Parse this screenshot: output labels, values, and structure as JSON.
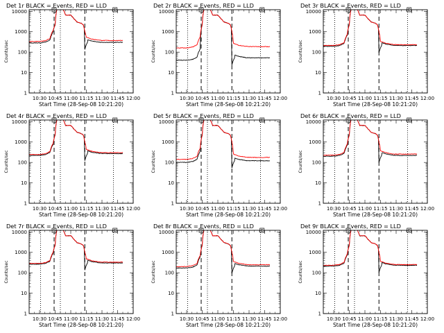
{
  "figure": {
    "xticks": [
      "10:30",
      "10:45",
      "11:00",
      "11:15",
      "11:30",
      "11:45",
      "12:00"
    ],
    "xtick_values": [
      30,
      45,
      60,
      75,
      90,
      105,
      120
    ],
    "xlim": [
      20,
      120
    ],
    "ylim": [
      1,
      12000
    ],
    "yticks": [
      "1",
      "10",
      "100",
      "1000",
      "10000"
    ],
    "ytick_values": [
      1,
      10,
      100,
      1000,
      10000
    ],
    "ylabel": "Counts/sec",
    "xlabel": "Start Time (28-Sep-08 10:21:20)",
    "colors": {
      "events": "#000000",
      "lld": "#ff0000"
    },
    "dotted_markers_min": [
      31,
      50,
      101
    ],
    "dashed_markers_min": [
      44,
      73.5
    ],
    "box_markers": [
      {
        "label": "S",
        "at_min": 44
      },
      {
        "label": "E",
        "at_min": 102.5
      }
    ]
  },
  "chart_data": [
    {
      "type": "line",
      "title": "Det 1r BLACK = Events, RED = LLD",
      "base_events": 280,
      "base_lld": 330,
      "post_events": 300,
      "post_lld": 370
    },
    {
      "type": "line",
      "title": "Det 2r BLACK = Events, RED = LLD",
      "base_events": 40,
      "base_lld": 160,
      "post_events": 52,
      "post_lld": 185
    },
    {
      "type": "line",
      "title": "Det 3r BLACK = Events, RED = LLD",
      "base_events": 190,
      "base_lld": 210,
      "post_events": 210,
      "post_lld": 230
    },
    {
      "type": "line",
      "title": "Det 4r BLACK = Events, RED = LLD",
      "base_events": 220,
      "base_lld": 245,
      "post_events": 270,
      "post_lld": 300
    },
    {
      "type": "line",
      "title": "Det 5r BLACK = Events, RED = LLD",
      "base_events": 100,
      "base_lld": 140,
      "post_events": 120,
      "post_lld": 175
    },
    {
      "type": "line",
      "title": "Det 6r BLACK = Events, RED = LLD",
      "base_events": 200,
      "base_lld": 225,
      "post_events": 220,
      "post_lld": 255
    },
    {
      "type": "line",
      "title": "Det 7r BLACK = Events, RED = LLD",
      "base_events": 260,
      "base_lld": 285,
      "post_events": 300,
      "post_lld": 330
    },
    {
      "type": "line",
      "title": "Det 8r BLACK = Events, RED = LLD",
      "base_events": 170,
      "base_lld": 200,
      "post_events": 210,
      "post_lld": 245
    },
    {
      "type": "line",
      "title": "Det 9r BLACK = Events, RED = LLD",
      "base_events": 210,
      "base_lld": 230,
      "post_events": 230,
      "post_lld": 250
    }
  ]
}
